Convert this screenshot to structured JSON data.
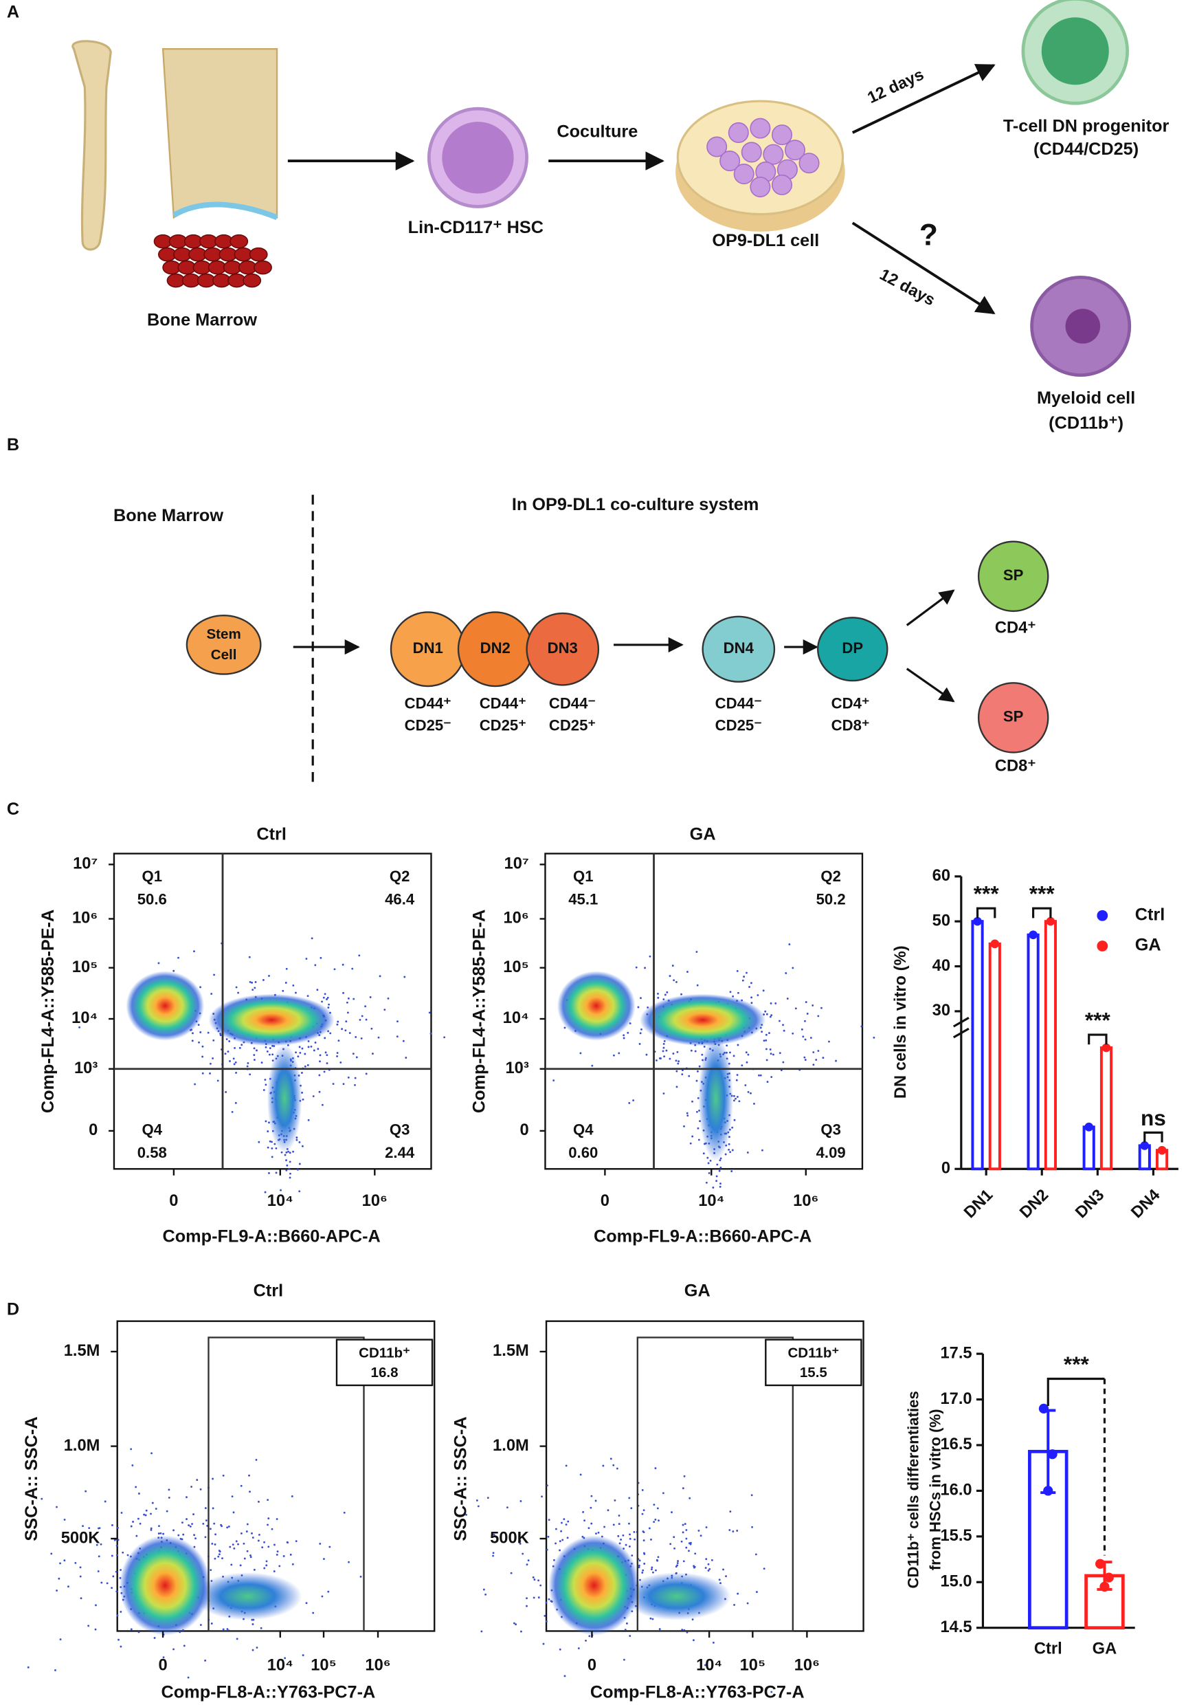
{
  "panel_a": {
    "label": "A",
    "bone_marrow": "Bone Marrow",
    "hsc": "Lin-CD117⁺ HSC",
    "coculture": "Coculture",
    "op9": "OP9-DL1 cell",
    "days_top": "12 days",
    "days_bottom": "12 days",
    "question": "?",
    "tcell": [
      "T-cell DN progenitor",
      "(CD44/CD25)"
    ],
    "myeloid": [
      "Myeloid cell",
      "(CD11b⁺)"
    ]
  },
  "panel_b": {
    "label": "B",
    "bone_marrow": "Bone Marrow",
    "system": "In OP9-DL1 co-culture system",
    "stem": [
      "Stem",
      "Cell"
    ],
    "nodes": [
      {
        "label": "DN1",
        "markers": [
          "CD44⁺",
          "CD25⁻"
        ]
      },
      {
        "label": "DN2",
        "markers": [
          "CD44⁺",
          "CD25⁺"
        ]
      },
      {
        "label": "DN3",
        "markers": [
          "CD44⁻",
          "CD25⁺"
        ]
      },
      {
        "label": "DN4",
        "markers": [
          "CD44⁻",
          "CD25⁻"
        ]
      },
      {
        "label": "DP",
        "markers": [
          "CD4⁺",
          "CD8⁺"
        ]
      }
    ],
    "sp": [
      {
        "label": "SP",
        "marker": "CD4⁺"
      },
      {
        "label": "SP",
        "marker": "CD8⁺"
      }
    ]
  },
  "panel_c": {
    "label": "C",
    "flow": {
      "x_label": "Comp-FL9-A::B660-APC-A",
      "y_label": "Comp-FL4-A::Y585-PE-A",
      "yticks": [
        "10⁷",
        "10⁶",
        "10⁵",
        "10⁴",
        "10³",
        "0"
      ],
      "xticks": [
        "0",
        "10⁴",
        "10⁶"
      ],
      "plots": [
        {
          "title": "Ctrl",
          "quadrants": [
            {
              "name": "Q1",
              "value": "50.6"
            },
            {
              "name": "Q2",
              "value": "46.4"
            },
            {
              "name": "Q3",
              "value": "2.44"
            },
            {
              "name": "Q4",
              "value": "0.58"
            }
          ]
        },
        {
          "title": "GA",
          "quadrants": [
            {
              "name": "Q1",
              "value": "45.1"
            },
            {
              "name": "Q2",
              "value": "50.2"
            },
            {
              "name": "Q3",
              "value": "4.09"
            },
            {
              "name": "Q4",
              "value": "0.60"
            }
          ]
        }
      ]
    }
  },
  "panel_d": {
    "label": "D",
    "flow": {
      "x_label": "Comp-FL8-A::Y763-PC7-A",
      "y_label": "SSC-A:: SSC-A",
      "yticks": [
        "1.5M",
        "1.0M",
        "500K"
      ],
      "xticks": [
        "0",
        "10⁴",
        "10⁵",
        "10⁶"
      ],
      "plots": [
        {
          "title": "Ctrl",
          "gate": "CD11b⁺",
          "value": "16.8"
        },
        {
          "title": "GA",
          "gate": "CD11b⁺",
          "value": "15.5"
        }
      ]
    }
  },
  "chart_data": [
    {
      "type": "bar",
      "y_label": "DN cells in vitro (%)",
      "categories": [
        "DN1",
        "DN2",
        "DN3",
        "DN4"
      ],
      "series": [
        {
          "name": "Ctrl",
          "color": "#1f1fff",
          "values": [
            50,
            47,
            9,
            5
          ]
        },
        {
          "name": "GA",
          "color": "#ff2020",
          "values": [
            45,
            50,
            26,
            4
          ]
        }
      ],
      "ylim": [
        0,
        60
      ],
      "axis_break": [
        28,
        30
      ],
      "yticks": [
        0,
        30,
        40,
        50,
        60
      ],
      "significance": [
        "***",
        "***",
        "***",
        "ns"
      ],
      "legend": "upper right"
    },
    {
      "type": "bar",
      "y_label": [
        "CD11b⁺ cells differentiaties",
        "from HSCs in vitro (%)"
      ],
      "categories": [
        "Ctrl",
        "GA"
      ],
      "values": [
        16.43,
        15.07
      ],
      "errors": [
        0.45,
        0.15
      ],
      "points": [
        [
          16.9,
          16.0,
          16.4
        ],
        [
          15.2,
          14.95,
          15.05
        ]
      ],
      "colors": [
        "#1f1fff",
        "#ff2020"
      ],
      "ylim": [
        14.5,
        17.5
      ],
      "yticks": [
        14.5,
        {
          "value": 15,
          "label": "15.0"
        },
        15.5,
        {
          "value": 16,
          "label": "16.0"
        },
        16.5,
        {
          "value": 17,
          "label": "17.0"
        },
        17.5
      ],
      "significance": "***"
    }
  ]
}
